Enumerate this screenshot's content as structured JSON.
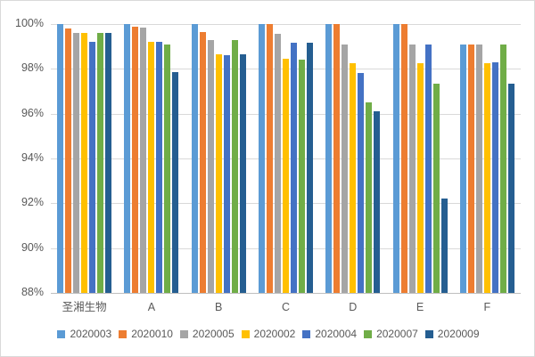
{
  "chart_data": {
    "type": "bar",
    "title": "",
    "categories": [
      "圣湘生物",
      "A",
      "B",
      "C",
      "D",
      "E",
      "F"
    ],
    "series": [
      {
        "name": "2020003",
        "color": "#5B9BD5",
        "values": [
          100,
          100,
          100,
          100,
          100,
          100,
          99.1
        ]
      },
      {
        "name": "2020010",
        "color": "#ED7D31",
        "values": [
          99.8,
          99.9,
          99.65,
          100,
          100,
          100,
          99.1
        ]
      },
      {
        "name": "2020005",
        "color": "#A5A5A5",
        "values": [
          99.6,
          99.85,
          99.3,
          99.55,
          99.1,
          99.1,
          99.1
        ]
      },
      {
        "name": "2020002",
        "color": "#FFC000",
        "values": [
          99.6,
          99.2,
          98.65,
          98.45,
          98.25,
          98.25,
          98.25
        ]
      },
      {
        "name": "2020004",
        "color": "#4472C4",
        "values": [
          99.2,
          99.2,
          98.6,
          99.15,
          97.8,
          99.1,
          98.3
        ]
      },
      {
        "name": "2020007",
        "color": "#70AD47",
        "values": [
          99.6,
          99.1,
          99.3,
          98.4,
          96.5,
          97.35,
          99.1
        ]
      },
      {
        "name": "2020009",
        "color": "#255E91",
        "values": [
          99.6,
          97.85,
          98.65,
          99.15,
          96.1,
          92.2,
          97.35
        ]
      }
    ],
    "xlabel": "",
    "ylabel": "",
    "ylim": [
      88,
      100
    ],
    "ytick_step": 2,
    "ytick_labels": [
      "88%",
      "90%",
      "92%",
      "94%",
      "96%",
      "98%",
      "100%"
    ],
    "grid": true,
    "legend_position": "bottom"
  },
  "style": {
    "gridline_color": "#D9D9D9",
    "axisline_color": "#BFBFBF",
    "label_color": "#595959",
    "background": "#ffffff"
  }
}
